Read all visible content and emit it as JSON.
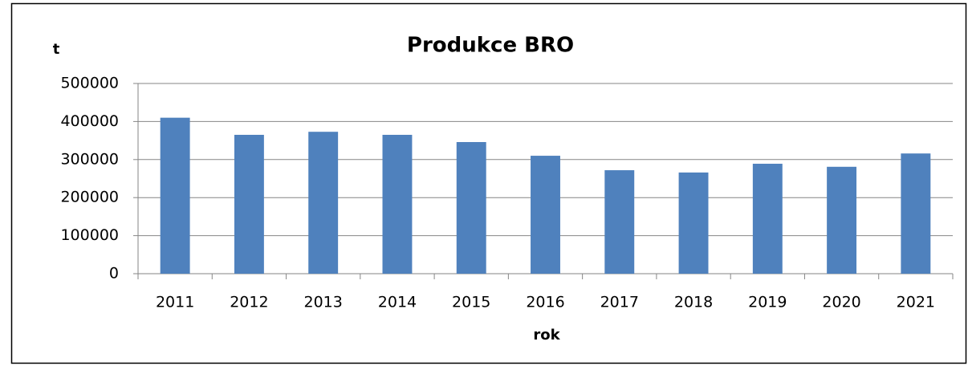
{
  "chart_data": {
    "type": "bar",
    "title": "Produkce BRO",
    "y_label": "t",
    "x_label": "rok",
    "categories": [
      "2011",
      "2012",
      "2013",
      "2014",
      "2015",
      "2016",
      "2017",
      "2018",
      "2019",
      "2020",
      "2021"
    ],
    "values": [
      410000,
      365000,
      373000,
      365000,
      346000,
      310000,
      272000,
      266000,
      289000,
      281000,
      316000
    ],
    "color": "#4f81bd",
    "ylim": [
      0,
      500000
    ],
    "yticks": [
      0,
      100000,
      200000,
      300000,
      400000,
      500000
    ],
    "grid": true
  }
}
